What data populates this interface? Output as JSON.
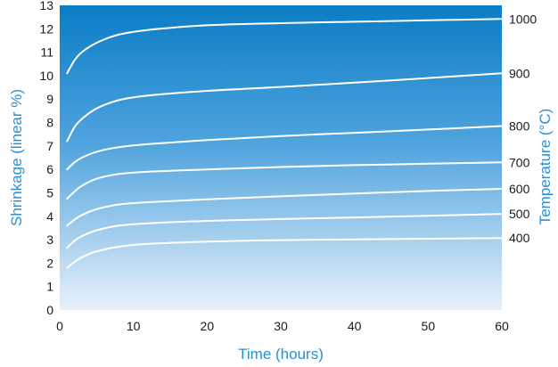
{
  "chart_data": {
    "type": "line",
    "xlabel": "Time (hours)",
    "ylabel": "Shrinkage (linear %)",
    "y2label": "Temperature (°C)",
    "xlim": [
      0,
      60
    ],
    "ylim": [
      0,
      13
    ],
    "x_ticks": [
      "0",
      "10",
      "20",
      "30",
      "40",
      "50",
      "60"
    ],
    "y_ticks": [
      "0",
      "1",
      "2",
      "3",
      "4",
      "5",
      "6",
      "7",
      "8",
      "9",
      "10",
      "11",
      "12",
      "13"
    ],
    "grid": false,
    "background": {
      "top_color": "#0a7dc6",
      "bottom_color": "#e8f1fa"
    },
    "line_color": "#ffffff",
    "series": [
      {
        "name": "400",
        "x": [
          1,
          2,
          3,
          5,
          8,
          12,
          20,
          30,
          40,
          50,
          60
        ],
        "y": [
          1.8,
          2.05,
          2.25,
          2.5,
          2.7,
          2.82,
          2.92,
          2.98,
          3.01,
          3.04,
          3.07
        ]
      },
      {
        "name": "500",
        "x": [
          1,
          2,
          3,
          5,
          8,
          12,
          20,
          30,
          40,
          50,
          60
        ],
        "y": [
          2.65,
          2.95,
          3.15,
          3.4,
          3.6,
          3.7,
          3.8,
          3.88,
          3.95,
          4.02,
          4.1
        ]
      },
      {
        "name": "600",
        "x": [
          1,
          2,
          3,
          5,
          8,
          12,
          20,
          30,
          40,
          50,
          60
        ],
        "y": [
          3.6,
          3.85,
          4.05,
          4.3,
          4.5,
          4.6,
          4.72,
          4.85,
          4.97,
          5.08,
          5.17
        ]
      },
      {
        "name": "700",
        "x": [
          1,
          2,
          3,
          5,
          8,
          12,
          20,
          30,
          40,
          50,
          60
        ],
        "y": [
          4.75,
          5.05,
          5.3,
          5.6,
          5.8,
          5.9,
          6.0,
          6.1,
          6.18,
          6.24,
          6.3
        ]
      },
      {
        "name": "800",
        "x": [
          1,
          2,
          3,
          5,
          8,
          12,
          20,
          30,
          40,
          50,
          60
        ],
        "y": [
          6.0,
          6.3,
          6.5,
          6.75,
          6.95,
          7.08,
          7.25,
          7.42,
          7.56,
          7.7,
          7.85
        ]
      },
      {
        "name": "900",
        "x": [
          1,
          2,
          3,
          5,
          8,
          12,
          20,
          30,
          40,
          50,
          60
        ],
        "y": [
          7.2,
          7.8,
          8.15,
          8.6,
          8.95,
          9.15,
          9.35,
          9.52,
          9.7,
          9.9,
          10.1
        ]
      },
      {
        "name": "1000",
        "x": [
          1,
          2,
          3,
          5,
          8,
          12,
          20,
          30,
          40,
          50,
          60
        ],
        "y": [
          10.1,
          10.65,
          11.0,
          11.4,
          11.75,
          11.95,
          12.15,
          12.24,
          12.3,
          12.36,
          12.42
        ]
      }
    ]
  }
}
